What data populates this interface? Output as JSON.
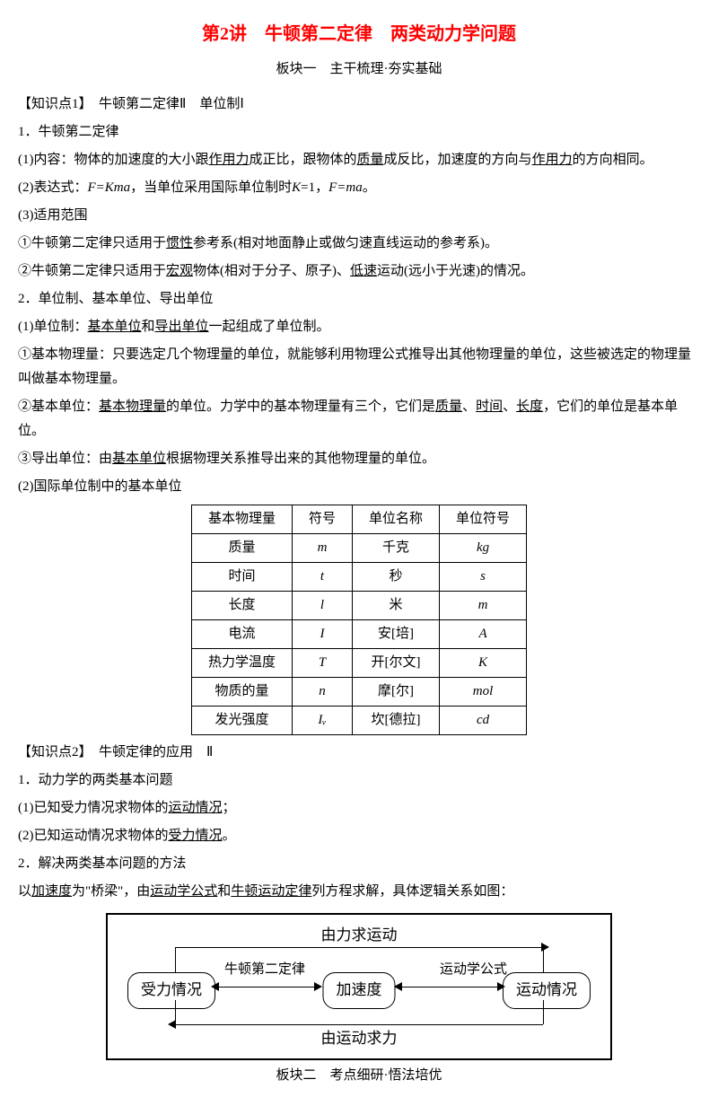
{
  "title": "第2讲　牛顿第二定律　两类动力学问题",
  "subtitle": "板块一　主干梳理·夯实基础",
  "kp1_header": "【知识点1】　牛顿第二定律Ⅱ　单位制Ⅰ",
  "s1_1": "1．牛顿第二定律",
  "s1_1_1a": "(1)内容：物体的加速度的大小跟",
  "s1_1_1b": "作用力",
  "s1_1_1c": "成正比，跟物体的",
  "s1_1_1d": "质量",
  "s1_1_1e": "成反比，加速度的方向与",
  "s1_1_1f": "作用力",
  "s1_1_1g": "的方向相同。",
  "s1_2a": "(2)表达式：",
  "s1_2b": "F=Kma",
  "s1_2c": "，当单位采用国际单位制时",
  "s1_2d": "K",
  "s1_2e": "=1，",
  "s1_2f": "F=ma",
  "s1_2g": "。",
  "s1_3": "(3)适用范围",
  "s1_3_1a": "①牛顿第二定律只适用于",
  "s1_3_1b": "惯性",
  "s1_3_1c": "参考系(相对地面静止或做匀速直线运动的参考系)。",
  "s1_3_2a": "②牛顿第二定律只适用于",
  "s1_3_2b": "宏观",
  "s1_3_2c": "物体(相对于分子、原子)、",
  "s1_3_2d": "低速",
  "s1_3_2e": "运动(远小于光速)的情况。",
  "s2": "2．单位制、基本单位、导出单位",
  "s2_1a": "(1)单位制：",
  "s2_1b": "基本单位",
  "s2_1c": "和",
  "s2_1d": "导出单位",
  "s2_1e": "一起组成了单位制。",
  "s2_1_1": "①基本物理量：只要选定几个物理量的单位，就能够利用物理公式推导出其他物理量的单位，这些被选定的物理量叫做基本物理量。",
  "s2_1_2a": "②基本单位：",
  "s2_1_2b": "基本物理量",
  "s2_1_2c": "的单位。力学中的基本物理量有三个，它们是",
  "s2_1_2d": "质量",
  "s2_1_2e": "、",
  "s2_1_2f": "时间",
  "s2_1_2g": "、",
  "s2_1_2h": "长度",
  "s2_1_2i": "，它们的单位是基本单位。",
  "s2_1_3a": "③导出单位：由",
  "s2_1_3b": "基本单位",
  "s2_1_3c": "根据物理关系推导出来的其他物理量的单位。",
  "s2_2": "(2)国际单位制中的基本单位",
  "table": {
    "headers": [
      "基本物理量",
      "符号",
      "单位名称",
      "单位符号"
    ],
    "rows": [
      [
        "质量",
        "m",
        "千克",
        "kg"
      ],
      [
        "时间",
        "t",
        "秒",
        "s"
      ],
      [
        "长度",
        "l",
        "米",
        "m"
      ],
      [
        "电流",
        "I",
        "安[培]",
        "A"
      ],
      [
        "热力学温度",
        "T",
        "开[尔文]",
        "K"
      ],
      [
        "物质的量",
        "n",
        "摩[尔]",
        "mol"
      ],
      [
        "发光强度",
        "Iᵥ",
        "坎[德拉]",
        "cd"
      ]
    ]
  },
  "kp2_header": "【知识点2】　牛顿定律的应用　Ⅱ",
  "k2_1": "1．动力学的两类基本问题",
  "k2_1_1a": "(1)已知受力情况求物体的",
  "k2_1_1b": "运动情况",
  "k2_1_1c": "；",
  "k2_1_2a": "(2)已知运动情况求物体的",
  "k2_1_2b": "受力情况",
  "k2_1_2c": "。",
  "k2_2": "2．解决两类基本问题的方法",
  "k2_2a": "以",
  "k2_2b": "加速度",
  "k2_2c": "为\"桥梁\"，由",
  "k2_2d": "运动学公式",
  "k2_2e": "和",
  "k2_2f": "牛顿运动定律",
  "k2_2g": "列方程求解，具体逻辑关系如图：",
  "diagram": {
    "top_label": "由力求运动",
    "bottom_label": "由运动求力",
    "left_node": "受力情况",
    "mid_node": "加速度",
    "right_node": "运动情况",
    "link1": "牛顿第二定律",
    "link2": "运动学公式"
  },
  "footer_subtitle": "板块二　考点细研·悟法培优"
}
